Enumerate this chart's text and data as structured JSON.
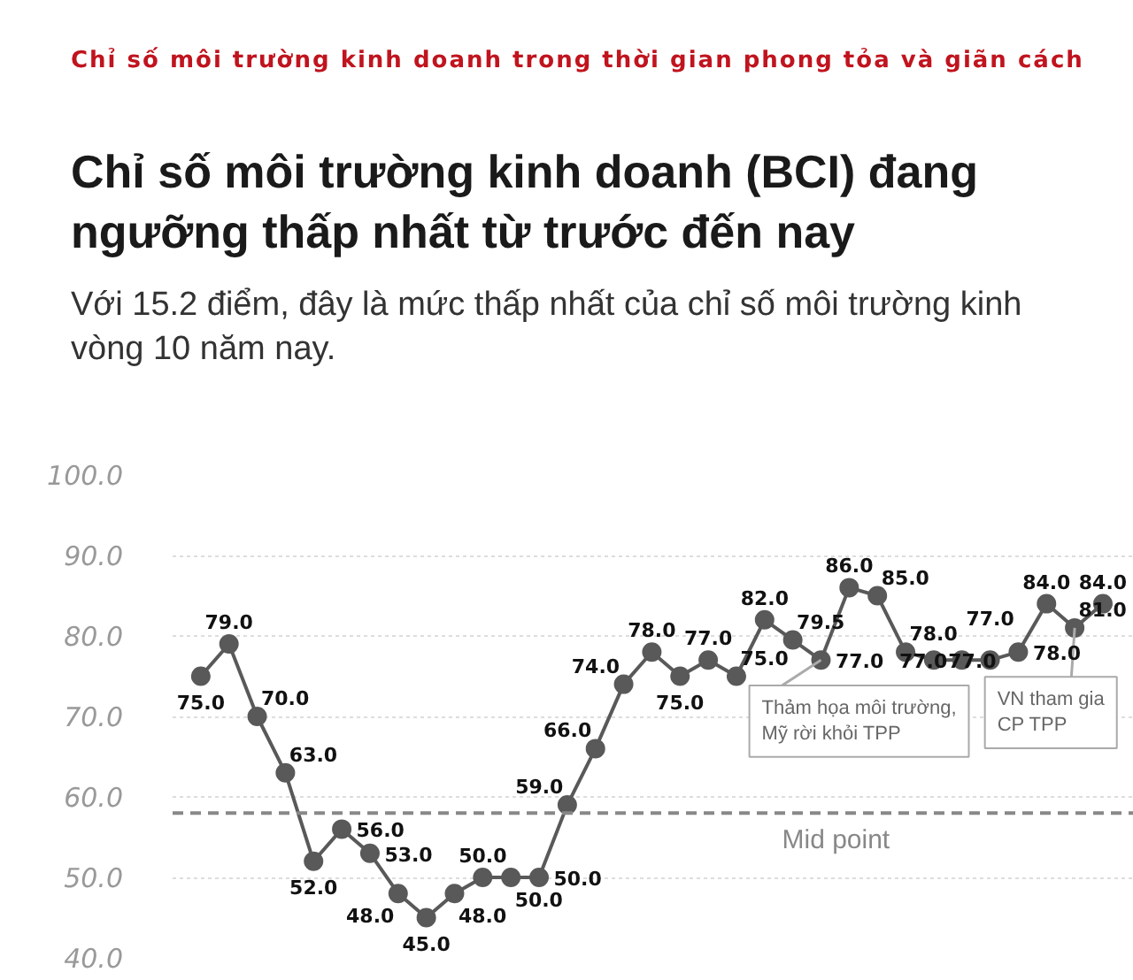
{
  "chart_data": {
    "type": "line",
    "title": "Chỉ số môi trường kinh doanh (BCI) đang ngưỡng thấp nhất từ trước đến nay",
    "subtitle": "Với 15.2 điểm, đây là mức thấp nhất của chỉ số môi trường kinh vòng 10 năm nay.",
    "annotations": [
      "Chỉ số môi trường kinh doanh trong thời gian phong tỏa và giãn cách",
      "Thảm họa môi trường, Mỹ rời khỏi TPP",
      "VN tham gia CP TPP"
    ],
    "categories": [
      null,
      null,
      null,
      null,
      null,
      null,
      null,
      null,
      null,
      null,
      null,
      null,
      null,
      null,
      null,
      null,
      null,
      null,
      null,
      null,
      null,
      null,
      null,
      null,
      null,
      null,
      null,
      null,
      null,
      null,
      null,
      null,
      null
    ],
    "series": [
      {
        "color": "#595959",
        "values": [
          75,
          79,
          70,
          63,
          52,
          56,
          53,
          48,
          45,
          48,
          50,
          50,
          50,
          59,
          66,
          74,
          78,
          75,
          77,
          75,
          82,
          79.5,
          77,
          86,
          85,
          78,
          77,
          77,
          77,
          78,
          84,
          81,
          84
        ],
        "value_labels": [
          "75.0",
          "79.0",
          "70.0",
          "63.0",
          "52.0",
          "56.0",
          "53.0",
          "48.0",
          "45.0",
          "48.0",
          "50.0",
          "50.0",
          "50.0",
          "59.0",
          "66.0",
          "74.0",
          "78.0",
          "75.0",
          "77.0",
          "75.0",
          "82.0",
          "79.5",
          "77.0",
          "86.0",
          "85.0",
          "78.0",
          "77.0",
          "77.0",
          "77.0",
          "78.0",
          "84.0",
          "81.0",
          "84.0"
        ]
      }
    ],
    "ylim": [
      40,
      100
    ],
    "yticks": [
      {
        "value": 40,
        "label": "40.0"
      },
      {
        "value": 50,
        "label": "50.0"
      },
      {
        "value": 60,
        "label": "60.0"
      },
      {
        "value": 70,
        "label": "70.0"
      },
      {
        "value": 80,
        "label": "80.0"
      },
      {
        "value": 90,
        "label": "90.0"
      },
      {
        "value": 100,
        "label": "100.0"
      }
    ],
    "grid": "y",
    "tick_labels": "y",
    "marker": "circle",
    "line_style": "solid",
    "ref_lines": [
      {
        "axis": "y",
        "value": 58,
        "label": "Mid point",
        "color": "#888888",
        "line_style": "dashed"
      }
    ]
  }
}
